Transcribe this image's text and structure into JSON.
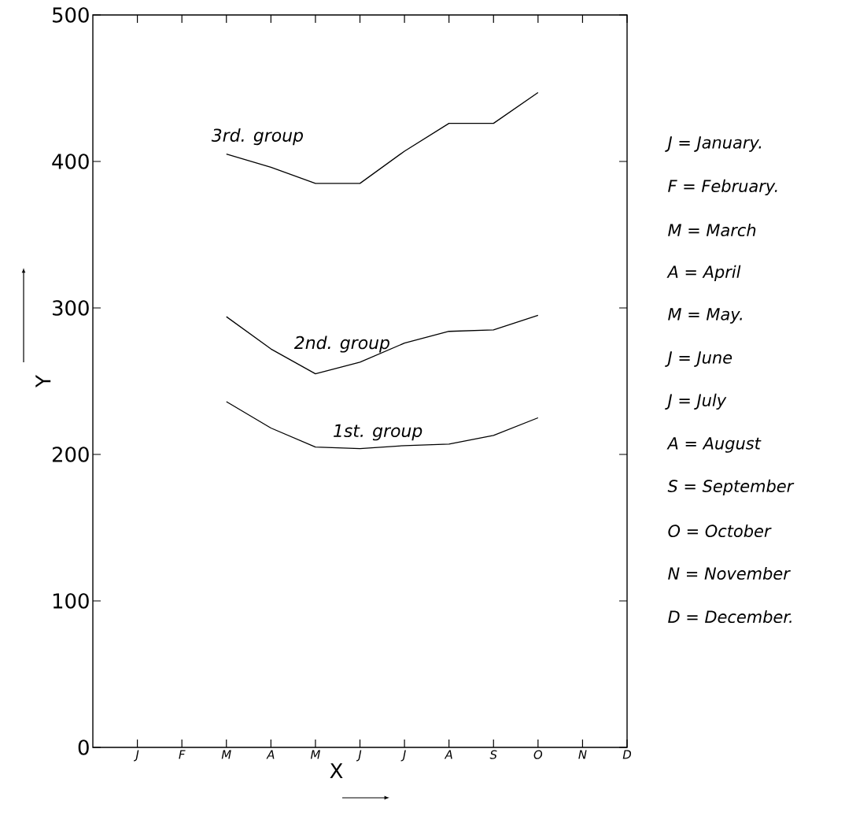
{
  "chart_data": {
    "type": "line",
    "xlabel": "X",
    "ylabel": "Y",
    "categories": [
      "J",
      "F",
      "M",
      "A",
      "M",
      "J",
      "J",
      "A",
      "S",
      "O",
      "N",
      "D"
    ],
    "series": [
      {
        "name": "1st. group",
        "color": "#000000",
        "values": [
          null,
          null,
          236,
          218,
          205,
          204,
          206,
          207,
          213,
          225,
          null,
          null
        ]
      },
      {
        "name": "2nd. group",
        "color": "#000000",
        "values": [
          null,
          null,
          294,
          272,
          255,
          263,
          276,
          284,
          285,
          295,
          null,
          null
        ]
      },
      {
        "name": "3rd. group",
        "color": "#000000",
        "values": [
          null,
          null,
          405,
          396,
          385,
          385,
          407,
          426,
          426,
          447,
          null,
          null
        ]
      }
    ],
    "ylim": [
      0,
      500
    ],
    "yticks": [
      0,
      100,
      200,
      300,
      400,
      500
    ],
    "grid": false,
    "legend": false,
    "marker": "none",
    "line_style": "solid",
    "annotations": [
      "J = January.",
      "F = February.",
      "M = March",
      "A = April",
      "M = May.",
      "J = June",
      "J = July",
      "A = August",
      "S = September",
      "O = October",
      "N = November",
      "D = December."
    ]
  }
}
